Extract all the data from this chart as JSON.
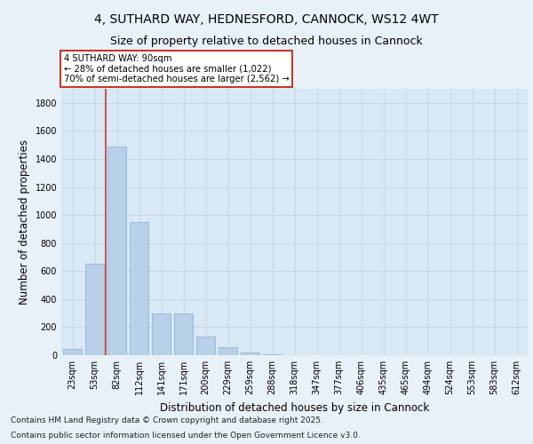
{
  "title_line1": "4, SUTHARD WAY, HEDNESFORD, CANNOCK, WS12 4WT",
  "title_line2": "Size of property relative to detached houses in Cannock",
  "xlabel": "Distribution of detached houses by size in Cannock",
  "ylabel": "Number of detached properties",
  "categories": [
    "23sqm",
    "53sqm",
    "82sqm",
    "112sqm",
    "141sqm",
    "171sqm",
    "200sqm",
    "229sqm",
    "259sqm",
    "288sqm",
    "318sqm",
    "347sqm",
    "377sqm",
    "406sqm",
    "435sqm",
    "465sqm",
    "494sqm",
    "524sqm",
    "553sqm",
    "583sqm",
    "612sqm"
  ],
  "values": [
    45,
    650,
    1490,
    950,
    295,
    295,
    130,
    60,
    20,
    5,
    2,
    0,
    0,
    0,
    0,
    0,
    0,
    0,
    0,
    0,
    0
  ],
  "bar_color": "#b8d0e8",
  "bar_edge_color": "#8ab0d0",
  "vline_color": "#c0392b",
  "vline_x": 1.5,
  "ylim": [
    0,
    1900
  ],
  "yticks": [
    0,
    200,
    400,
    600,
    800,
    1000,
    1200,
    1400,
    1600,
    1800
  ],
  "annotation_text_line1": "4 SUTHARD WAY: 90sqm",
  "annotation_text_line2": "← 28% of detached houses are smaller (1,022)",
  "annotation_text_line3": "70% of semi-detached houses are larger (2,562) →",
  "footer_line1": "Contains HM Land Registry data © Crown copyright and database right 2025.",
  "footer_line2": "Contains public sector information licensed under the Open Government Licence v3.0.",
  "background_color": "#e8f0f8",
  "plot_bg_color": "#d8e8f4",
  "grid_color": "#c8d8e8",
  "title_fontsize": 10,
  "subtitle_fontsize": 9,
  "axis_label_fontsize": 8.5,
  "tick_fontsize": 7,
  "footer_fontsize": 6.5
}
